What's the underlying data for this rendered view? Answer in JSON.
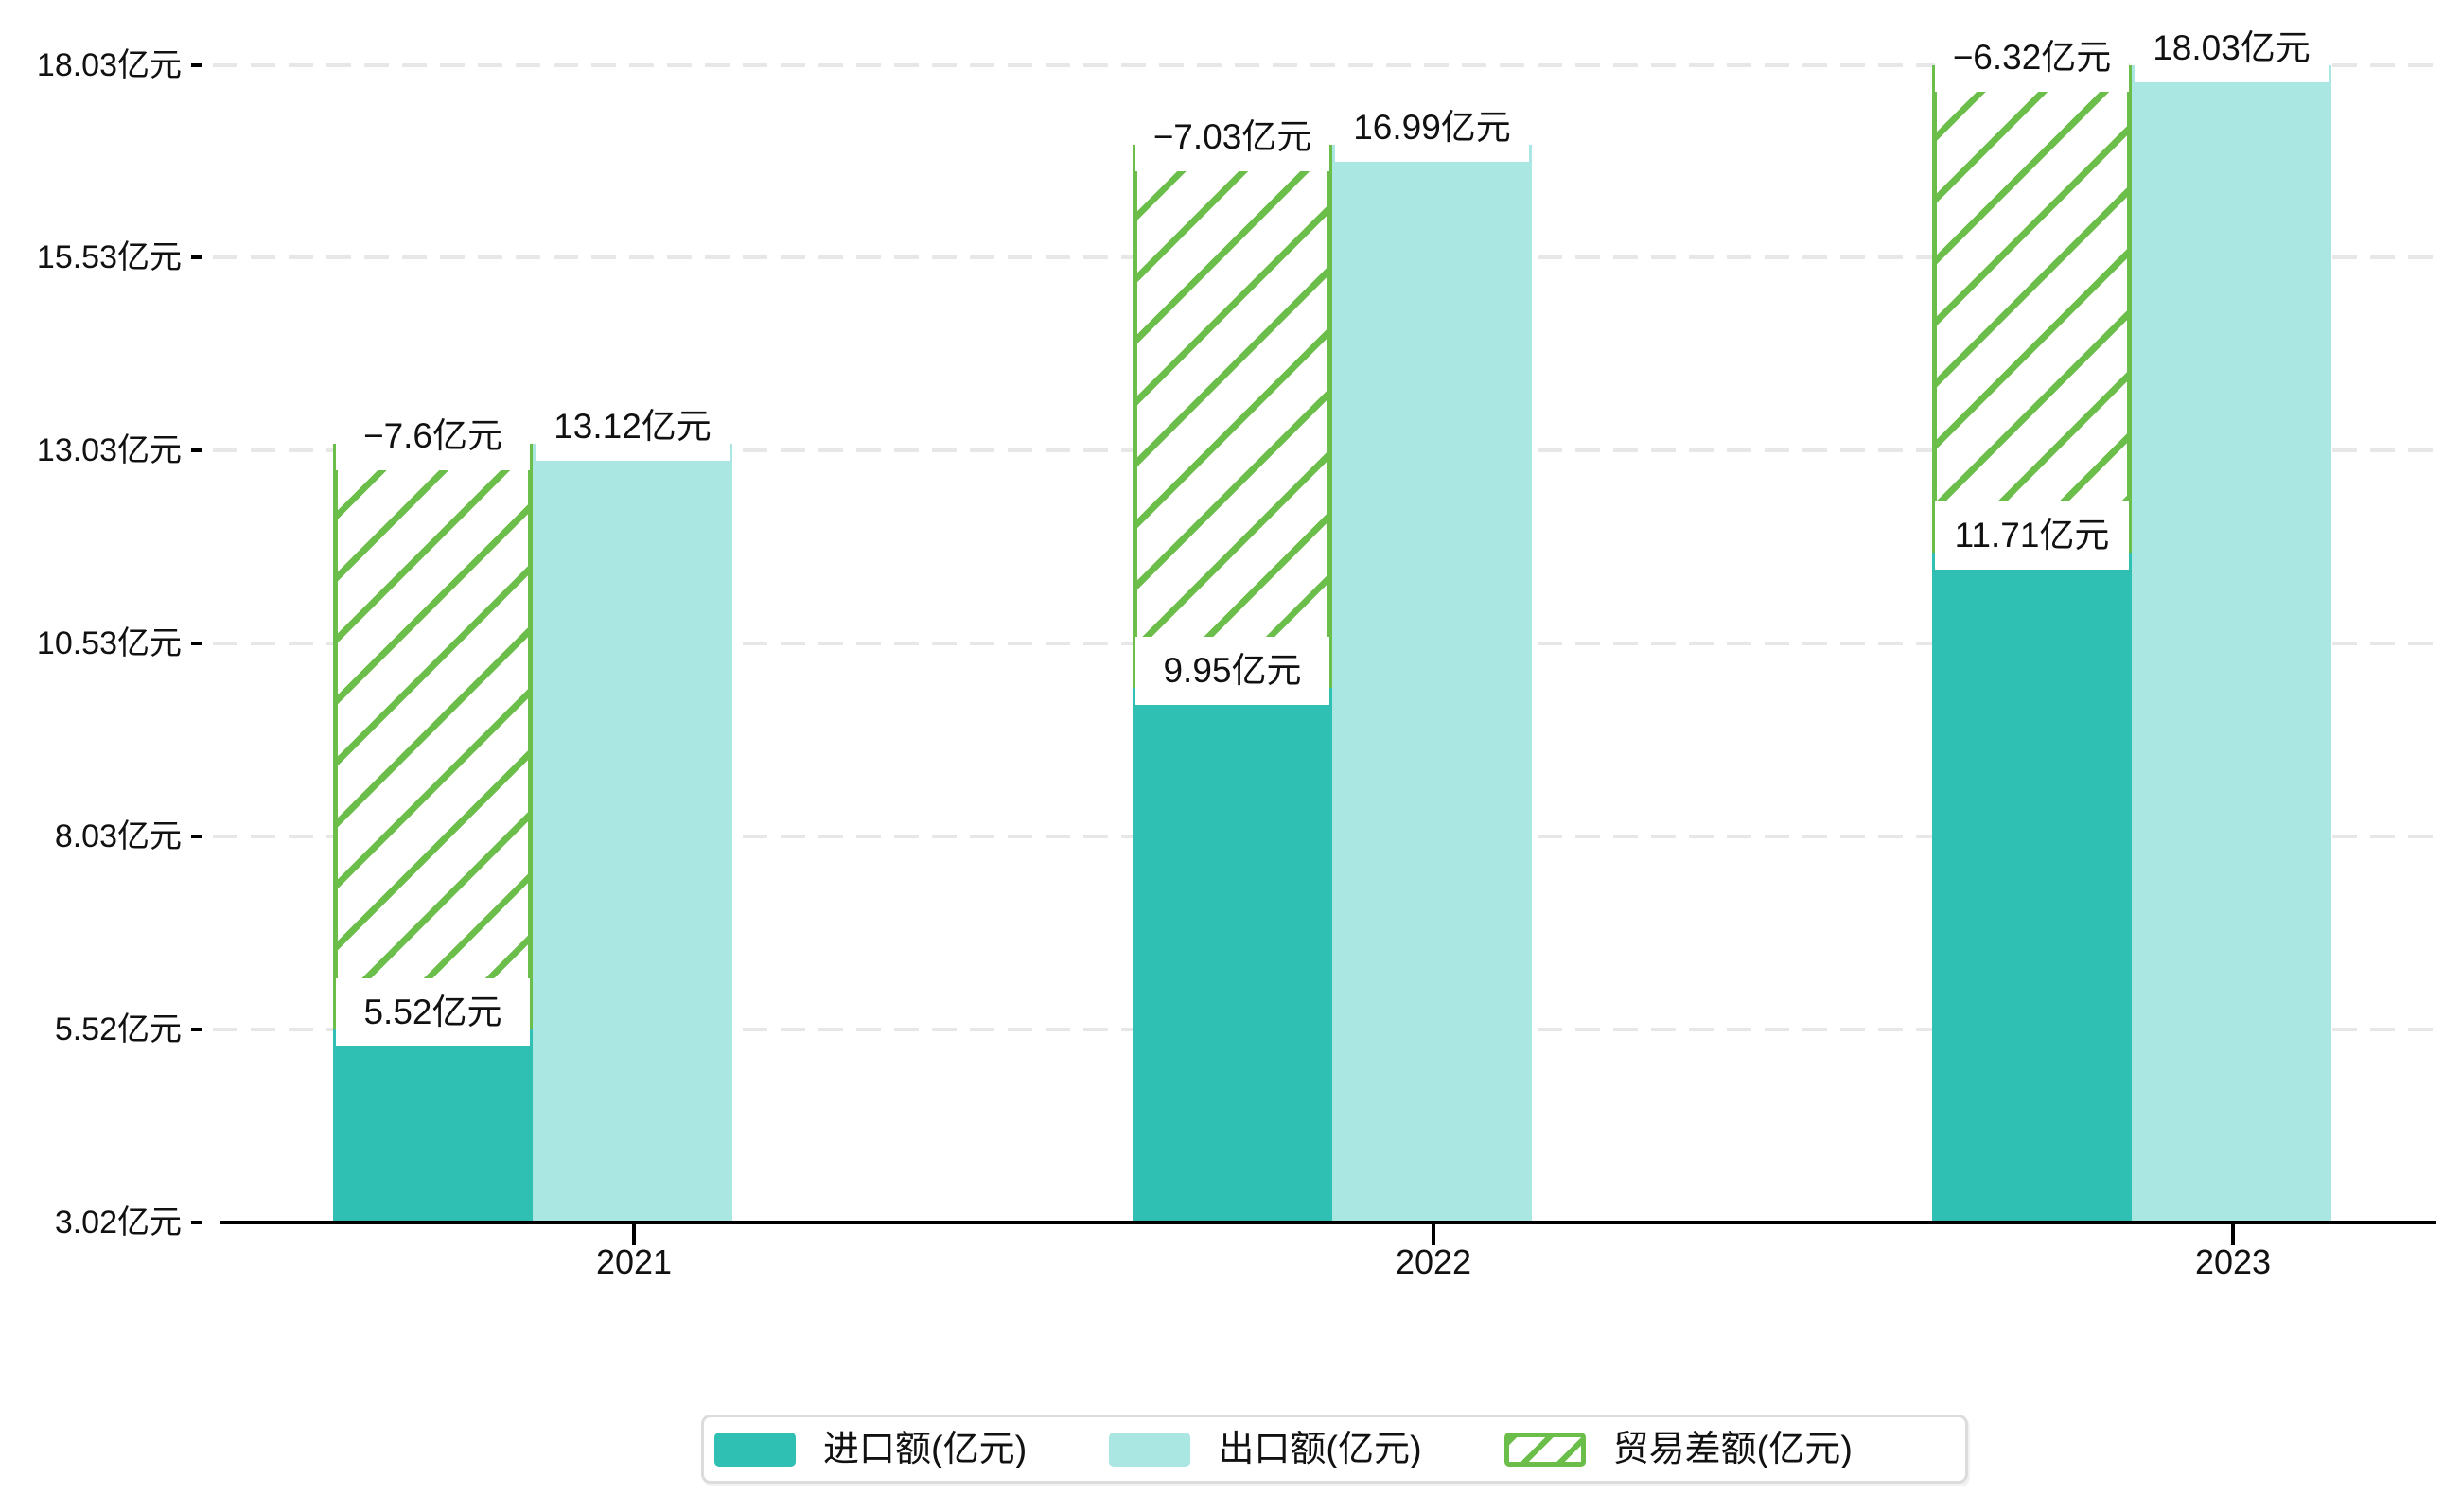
{
  "chart_data": {
    "type": "bar",
    "title": "",
    "unit": "亿元",
    "categories": [
      "2021",
      "2022",
      "2023"
    ],
    "series": [
      {
        "name": "进口额(亿元)",
        "key": "import",
        "color": "#2FBFB3",
        "values": [
          5.52,
          9.95,
          11.71
        ],
        "data_labels": [
          "5.52亿元",
          "9.95亿元",
          "11.71亿元"
        ]
      },
      {
        "name": "出口额(亿元)",
        "key": "export",
        "color": "#ABE7E2",
        "values": [
          13.12,
          16.99,
          18.03
        ],
        "data_labels": [
          "13.12亿元",
          "16.99亿元",
          "18.03亿元"
        ]
      },
      {
        "name": "贸易差额(亿元)",
        "key": "balance",
        "color": "#6CBE4A",
        "pattern": "diagonal-hatch",
        "values": [
          -7.6,
          -7.03,
          -6.32
        ],
        "data_labels": [
          "−7.6亿元",
          "−7.03亿元",
          "−6.32亿元"
        ]
      }
    ],
    "y_axis": {
      "min": 3.02,
      "max": 18.03,
      "tick_values": [
        3.02,
        5.52,
        8.03,
        10.53,
        13.03,
        15.53,
        18.03
      ],
      "tick_labels": [
        "3.02亿元",
        "5.52亿元",
        "8.03亿元",
        "10.53亿元",
        "13.03亿元",
        "15.53亿元",
        "18.03亿元"
      ]
    },
    "x_axis": {
      "tick_labels": [
        "2021",
        "2022",
        "2023"
      ]
    },
    "legend": {
      "position": "bottom",
      "items": [
        "进口额(亿元)",
        "出口额(亿元)",
        "贸易差额(亿元)"
      ]
    },
    "grid": {
      "horizontal": true,
      "style": "dashed"
    }
  },
  "colors": {
    "import": "#2FBFB3",
    "export": "#ABE7E2",
    "balance": "#6CBE4A",
    "axis": "#000000",
    "gridline": "#E7E7E7",
    "text": "#111111",
    "label_bg": "#FFFFFF",
    "legend_border": "#DCDCDC"
  }
}
